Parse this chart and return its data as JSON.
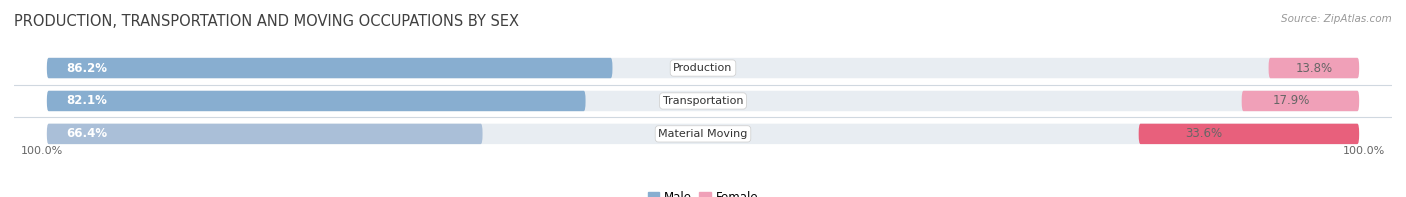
{
  "title": "PRODUCTION, TRANSPORTATION AND MOVING OCCUPATIONS BY SEX",
  "source": "Source: ZipAtlas.com",
  "categories": [
    "Production",
    "Transportation",
    "Material Moving"
  ],
  "male_values": [
    86.2,
    82.1,
    66.4
  ],
  "female_values": [
    13.8,
    17.9,
    33.6
  ],
  "male_color": [
    "#88aed0",
    "#88aed0",
    "#aabfd8"
  ],
  "female_color": [
    "#f0a0b8",
    "#f0a0b8",
    "#e8607c"
  ],
  "bg_color": "#ffffff",
  "track_color": "#e8edf2",
  "separator_color": "#d0d8e0",
  "title_color": "#404040",
  "label_color": "#555555",
  "pct_color_inside": "#ffffff",
  "pct_color_outside": "#666666",
  "title_fontsize": 10.5,
  "label_fontsize": 8.5,
  "tick_fontsize": 8,
  "legend_fontsize": 8.5,
  "bar_height": 0.62,
  "x_left_label": "100.0%",
  "x_right_label": "100.0%"
}
